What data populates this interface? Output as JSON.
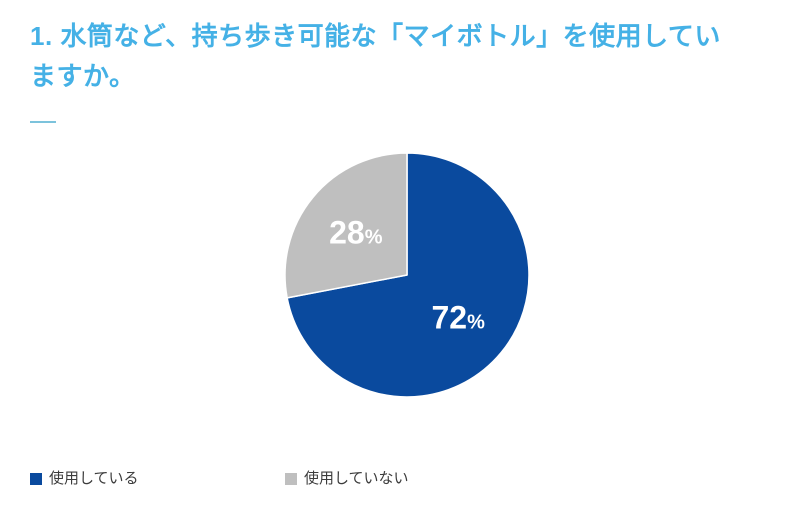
{
  "page": {
    "background": "#ffffff"
  },
  "header": {
    "title": "1. 水筒など、持ち歩き可能な「マイボトル」を使用していますか。",
    "title_color": "#45b1e6",
    "rule_color": "#7cc3dc"
  },
  "chart_data": {
    "type": "pie",
    "title": "1. 水筒など、持ち歩き可能な「マイボトル」を使用していますか。",
    "categories": [
      "使用している",
      "使用していない"
    ],
    "values": [
      72,
      28
    ],
    "unit": "%",
    "colors": [
      "#0a4a9e",
      "#bfbfbf"
    ],
    "label_color": "#ffffff",
    "slice_separator_color": "#ffffff",
    "start_angle_deg": 0,
    "direction": "clockwise",
    "legend_position": "bottom-left",
    "legend_text_color": "#3c3c3c"
  }
}
